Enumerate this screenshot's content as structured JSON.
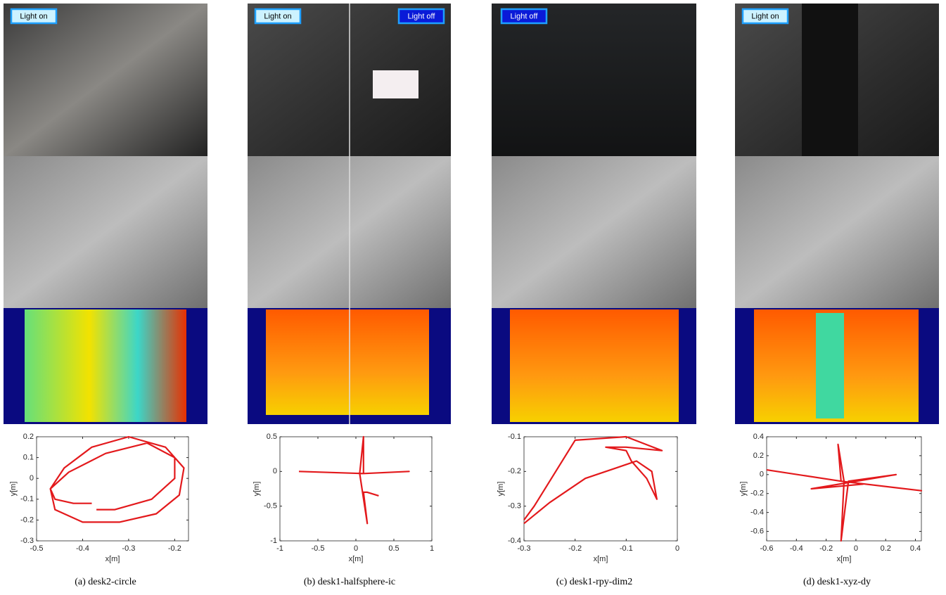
{
  "badges": [
    [
      "Light on"
    ],
    [
      "Light on",
      "Light off"
    ],
    [
      "Light off"
    ],
    [
      "Light on"
    ]
  ],
  "captions": [
    "(a) desk2-circle",
    "(b) desk1-halfsphere-ic",
    "(c) desk1-rpy-dim2",
    "(d) desk1-xyz-dy"
  ],
  "chart_data": [
    {
      "type": "line",
      "xlabel": "x[m]",
      "ylabel": "y[m]",
      "xlim": [
        -0.5,
        -0.17
      ],
      "ylim": [
        -0.3,
        0.2
      ],
      "xticks": [
        -0.5,
        -0.4,
        -0.3,
        -0.2
      ],
      "yticks": [
        -0.3,
        -0.2,
        -0.1,
        0,
        0.1,
        0.2
      ],
      "x": [
        -0.38,
        -0.42,
        -0.46,
        -0.47,
        -0.44,
        -0.38,
        -0.3,
        -0.22,
        -0.18,
        -0.19,
        -0.24,
        -0.32,
        -0.4,
        -0.46,
        -0.47,
        -0.43,
        -0.35,
        -0.26,
        -0.2,
        -0.2,
        -0.25,
        -0.33,
        -0.37
      ],
      "series": [
        {
          "color": "#e3191c",
          "values": [
            -0.12,
            -0.12,
            -0.1,
            -0.05,
            0.05,
            0.15,
            0.2,
            0.15,
            0.05,
            -0.08,
            -0.17,
            -0.21,
            -0.21,
            -0.15,
            -0.05,
            0.03,
            0.12,
            0.17,
            0.1,
            0.0,
            -0.1,
            -0.15,
            -0.15
          ]
        }
      ]
    },
    {
      "type": "line",
      "xlabel": "x[m]",
      "ylabel": "y[m]",
      "xlim": [
        -1,
        1
      ],
      "ylim": [
        -1,
        0.5
      ],
      "xticks": [
        -1,
        -0.5,
        0,
        0.5,
        1
      ],
      "yticks": [
        -1,
        -0.5,
        0,
        0.5
      ],
      "x": [
        -0.75,
        0.1,
        0.7,
        0.1,
        0.1,
        0.05,
        0.15,
        0.1,
        0.15,
        0.3
      ],
      "series": [
        {
          "color": "#e3191c",
          "values": [
            0,
            -0.03,
            0,
            -0.03,
            0.5,
            -0.03,
            -0.75,
            -0.3,
            -0.3,
            -0.35
          ]
        }
      ]
    },
    {
      "type": "line",
      "xlabel": "x[m]",
      "ylabel": "y[m]",
      "xlim": [
        -0.3,
        0
      ],
      "ylim": [
        -0.4,
        -0.1
      ],
      "xticks": [
        -0.3,
        -0.2,
        -0.1,
        0
      ],
      "yticks": [
        -0.4,
        -0.3,
        -0.2,
        -0.1
      ],
      "x": [
        -0.3,
        -0.25,
        -0.18,
        -0.12,
        -0.08,
        -0.05,
        -0.04,
        -0.06,
        -0.09,
        -0.1,
        -0.14,
        -0.1,
        -0.03,
        -0.1,
        -0.2,
        -0.28,
        -0.3
      ],
      "series": [
        {
          "color": "#e3191c",
          "values": [
            -0.35,
            -0.29,
            -0.22,
            -0.19,
            -0.17,
            -0.2,
            -0.28,
            -0.22,
            -0.17,
            -0.14,
            -0.13,
            -0.13,
            -0.14,
            -0.1,
            -0.11,
            -0.3,
            -0.34
          ]
        }
      ]
    },
    {
      "type": "line",
      "xlabel": "x[m]",
      "ylabel": "y[m]",
      "xlim": [
        -0.6,
        0.44
      ],
      "ylim": [
        -0.7,
        0.4
      ],
      "xticks": [
        -0.6,
        -0.4,
        -0.2,
        0,
        0.2,
        0.4
      ],
      "yticks": [
        -0.6,
        -0.4,
        -0.2,
        0,
        0.2,
        0.4
      ],
      "x": [
        -0.6,
        -0.1,
        0.44,
        -0.1,
        -0.12,
        -0.08,
        -0.1,
        -0.05,
        0.27,
        -0.3,
        0.05
      ],
      "series": [
        {
          "color": "#e3191c",
          "values": [
            0.05,
            -0.07,
            -0.17,
            -0.07,
            0.32,
            -0.07,
            -0.7,
            -0.07,
            0.0,
            -0.15,
            -0.1
          ]
        }
      ]
    }
  ]
}
